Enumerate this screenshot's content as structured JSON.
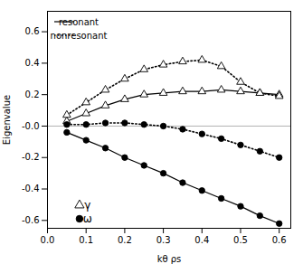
{
  "chart_data": {
    "type": "line",
    "title": "",
    "xlabel": "kθ ρs",
    "ylabel": "Eigenvalue",
    "xlim": [
      0.0,
      0.63
    ],
    "ylim": [
      -0.65,
      0.73
    ],
    "xticks": [
      {
        "value": 0.0,
        "label": "0.0"
      },
      0.1,
      0.2,
      0.3,
      0.4,
      0.5,
      0.6
    ],
    "yticks": [
      -0.6,
      -0.4,
      -0.2,
      {
        "value": 0.0,
        "label": "-0.0"
      },
      0.2,
      0.4,
      0.6
    ],
    "grid": false,
    "series": [
      {
        "color": "black",
        "line_style": "solid",
        "marker": "triangle",
        "x": [
          0.05,
          0.1,
          0.15,
          0.2,
          0.25,
          0.3,
          0.35,
          0.4,
          0.45,
          0.5,
          0.55,
          0.6
        ],
        "values": [
          0.03,
          0.08,
          0.13,
          0.17,
          0.2,
          0.21,
          0.22,
          0.22,
          0.23,
          0.22,
          0.21,
          0.2
        ]
      },
      {
        "color": "black",
        "line_style": "solid",
        "marker": "circle",
        "x": [
          0.05,
          0.1,
          0.15,
          0.2,
          0.25,
          0.3,
          0.35,
          0.4,
          0.45,
          0.5,
          0.55,
          0.6
        ],
        "values": [
          -0.04,
          -0.09,
          -0.14,
          -0.2,
          -0.25,
          -0.3,
          -0.36,
          -0.41,
          -0.46,
          -0.51,
          -0.57,
          -0.62
        ]
      },
      {
        "color": "black",
        "line_style": "dotted",
        "marker": "triangle",
        "x": [
          0.05,
          0.1,
          0.15,
          0.2,
          0.25,
          0.3,
          0.35,
          0.4,
          0.45,
          0.5,
          0.55,
          0.6
        ],
        "values": [
          0.07,
          0.15,
          0.23,
          0.3,
          0.36,
          0.39,
          0.41,
          0.42,
          0.38,
          0.28,
          0.21,
          0.19
        ]
      },
      {
        "color": "black",
        "line_style": "dotted",
        "marker": "circle",
        "x": [
          0.05,
          0.1,
          0.15,
          0.2,
          0.25,
          0.3,
          0.35,
          0.4,
          0.45,
          0.5,
          0.55,
          0.6
        ],
        "values": [
          0.01,
          0.01,
          0.02,
          0.02,
          0.01,
          0.0,
          -0.02,
          -0.05,
          -0.08,
          -0.12,
          -0.16,
          -0.2
        ]
      }
    ],
    "reference_lines": [
      {
        "y": 0,
        "color": "gray"
      }
    ],
    "legends": [
      {
        "legend": "upper left",
        "entries": [
          {
            "label": "resonant",
            "line_style": "solid",
            "color": "black"
          },
          {
            "label": "nonresonant",
            "line_style": "dotted",
            "color": "black"
          }
        ]
      },
      {
        "legend": "lower left",
        "entries": [
          {
            "label": "γ",
            "marker": "triangle",
            "color": "black"
          },
          {
            "label": "ω",
            "marker": "circle",
            "color": "black"
          }
        ]
      }
    ]
  }
}
